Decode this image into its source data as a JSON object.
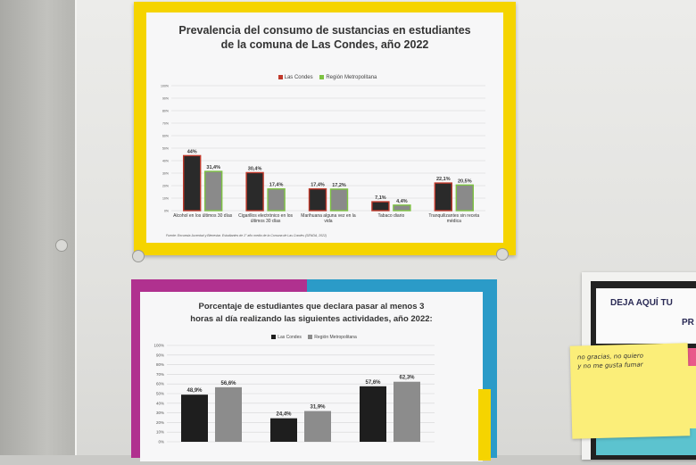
{
  "posters": [
    {
      "title_line1": "Prevalencia del consumo de sustancias en estudiantes",
      "title_line2": "de la comuna de Las Condes, año 2022",
      "source": "Fuente: Encuesta Juventud y Bienestar. Estudiantes de 1° año medio de la Comuna de Las Condes (SENDA, 2022)"
    },
    {
      "title_line1": "Porcentaje de estudiantes que declara pasar al menos 3",
      "title_line2": "horas al día realizando las siguientes actividades, año 2022:"
    }
  ],
  "chart_data": [
    {
      "type": "bar",
      "categories": [
        [
          "Alcohol en los últimos 30 días"
        ],
        [
          "Cigarillos electrónico en los",
          "últimos 30 días"
        ],
        [
          "Marihuana alguna vez en la",
          "vida"
        ],
        [
          "Tabaco diario"
        ],
        [
          "Tranquilizantes sin receta",
          "médica"
        ]
      ],
      "series": [
        {
          "name": "Las Condes",
          "values": [
            44,
            30.4,
            17.4,
            7.1,
            22.1
          ],
          "labels": [
            "44%",
            "30,4%",
            "17,4%",
            "7,1%",
            "22,1%"
          ],
          "color": "#2a2a2a"
        },
        {
          "name": "Región Metropolitana",
          "values": [
            31.4,
            17.4,
            17.2,
            4.4,
            20.5
          ],
          "labels": [
            "31,4%",
            "17,4%",
            "17,2%",
            "4,4%",
            "20,5%"
          ],
          "color": "#8a8a8a"
        }
      ],
      "yticks": [
        "0%",
        "10%",
        "20%",
        "30%",
        "40%",
        "50%",
        "60%",
        "70%",
        "80%",
        "90%",
        "100%"
      ],
      "ylim": [
        0,
        100
      ],
      "legend_colors": [
        "#c0392b",
        "#7dc242"
      ],
      "grid": true,
      "legend": "top"
    },
    {
      "type": "bar",
      "categories": [
        "",
        "",
        ""
      ],
      "series": [
        {
          "name": "Las Condes",
          "values": [
            48.9,
            24.4,
            57.6
          ],
          "labels": [
            "48,9%",
            "24,4%",
            "57,6%"
          ],
          "color": "#1e1e1e"
        },
        {
          "name": "Región Metropolitana",
          "values": [
            56.6,
            31.9,
            62.3
          ],
          "labels": [
            "56,6%",
            "31,9%",
            "62,3%"
          ],
          "color": "#8c8c8c"
        }
      ],
      "yticks": [
        "0%",
        "10%",
        "20%",
        "30%",
        "40%",
        "50%",
        "60%",
        "70%",
        "80%",
        "90%",
        "100%"
      ],
      "ylim": [
        0,
        100
      ],
      "legend_colors": [
        "#1e1e1e",
        "#8c8c8c"
      ],
      "grid": true,
      "legend": "top"
    }
  ],
  "sign": {
    "line1": "DEJA AQUÍ TU",
    "line2": "PR"
  },
  "sticky_note": {
    "line1": "no gracias, no quiero",
    "line2": "y no me gusta fumar"
  }
}
